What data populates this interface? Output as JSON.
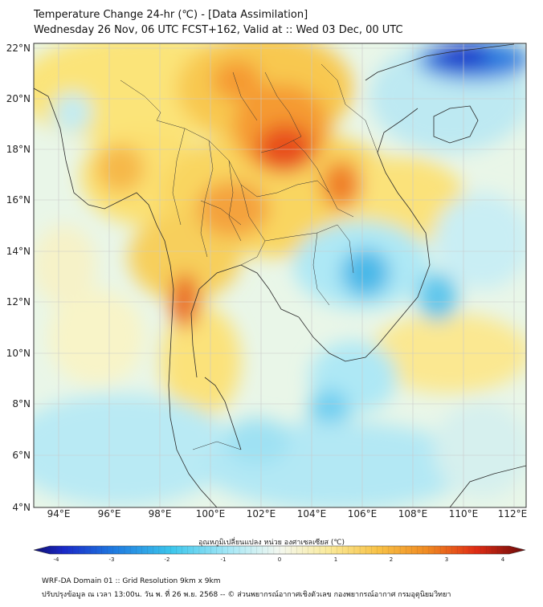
{
  "header": {
    "title": "Temperature Change 24-hr (℃) - [Data Assimilation]",
    "subtitle": "Wednesday 26 Nov, 06 UTC FCST+162, Valid at :: Wed 03 Dec, 00 UTC"
  },
  "map": {
    "lat_labels": [
      "22°N",
      "20°N",
      "18°N",
      "16°N",
      "14°N",
      "12°N",
      "10°N",
      "8°N",
      "6°N",
      "4°N"
    ],
    "lon_labels": [
      "94°E",
      "96°E",
      "98°E",
      "100°E",
      "102°E",
      "104°E",
      "106°E",
      "108°E",
      "110°E",
      "112°E"
    ],
    "lat_range": [
      4,
      22
    ],
    "lon_range": [
      93,
      112.5
    ],
    "grid": true
  },
  "colorbar": {
    "title": "อุณหภูมิเปลี่ยนแปลง หน่วย องศาเซลเซียส (℃)",
    "ticks": [
      "-4",
      "-3",
      "-2",
      "-1",
      "0",
      "1",
      "2",
      "3",
      "4"
    ],
    "range": [
      -4,
      4
    ]
  },
  "footer": {
    "line1": "WRF-DA Domain 01 :: Grid Resolution 9km x 9km",
    "line2": "ปรับปรุงข้อมูล ณ เวลา 13:00น. วัน พ. ที่ 26 พ.ย. 2568 -- © ส่วนพยากรณ์อากาศเชิงตัวเลข กองพยากรณ์อากาศ กรมอุตุนิยมวิทยา"
  },
  "colors": {
    "warm_strong": "#e8401a",
    "warm": "#f59a32",
    "warm_light": "#fbe27a",
    "neutral": "#eef5e2",
    "cool_light": "#aee8f5",
    "cool": "#3fc0e8",
    "cool_strong": "#1565d8",
    "deep_cool": "#1c2fc8"
  }
}
